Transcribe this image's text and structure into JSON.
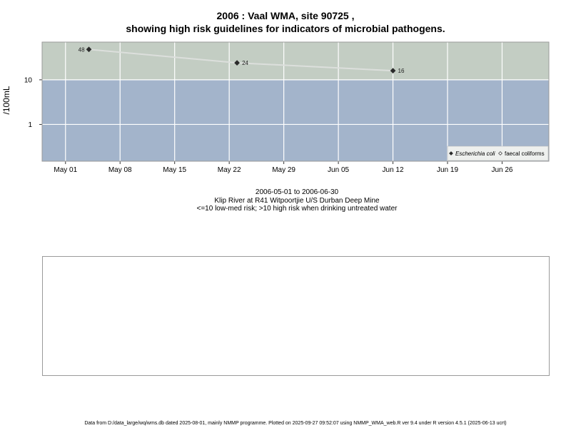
{
  "title_line1": "2006 : Vaal WMA, site 90725 ,",
  "title_line2": "showing high risk guidelines for indicators of microbial pathogens.",
  "captions": {
    "date_range": "2006-05-01 to 2006-06-30",
    "site": "Klip River at R41 Witpoortjie U/S Durban Deep Mine",
    "risk": "<=10 low-med risk; >10 high risk when drinking untreated water"
  },
  "footer": "Data from D:/data_large/wq/wms.db dated 2025-08-01, mainly NMMP programme. Plotted on 2025-09-27 09:52:07 using NMMP_WMA_web.R ver 9.4 under R version 4.5.1 (2025-06-13 ucrt)",
  "colors": {
    "low_risk_band": "#a3b4cb",
    "high_risk_band": "#c3cdc3",
    "grid": "#ffffff",
    "line": "#dcdfdc",
    "point": "#2b2b2b"
  },
  "chart_data": {
    "type": "line",
    "ylabel": "/100mL",
    "y_scale": "log",
    "ylim": [
      0.15,
      70
    ],
    "xlim": [
      "2006-04-28",
      "2006-07-02"
    ],
    "x_tick_labels": [
      "May 01",
      "May 08",
      "May 15",
      "May 22",
      "May 29",
      "Jun 05",
      "Jun 12",
      "Jun 19",
      "Jun 26"
    ],
    "x_ticks": [
      "2006-05-01",
      "2006-05-08",
      "2006-05-15",
      "2006-05-22",
      "2006-05-29",
      "2006-06-05",
      "2006-06-12",
      "2006-06-19",
      "2006-06-26"
    ],
    "y_ticks": [
      1,
      10
    ],
    "y_tick_labels": [
      "1",
      "10"
    ],
    "risk_threshold": 10,
    "grid": true,
    "legend_position": "bottom-right",
    "series": [
      {
        "name": "Escherichia coli",
        "marker": "filled-diamond",
        "points": [
          {
            "x": "2006-05-04",
            "y": 48,
            "label": "48"
          },
          {
            "x": "2006-05-23",
            "y": 24,
            "label": "24"
          },
          {
            "x": "2006-06-12",
            "y": 16,
            "label": "16"
          }
        ]
      },
      {
        "name": "faecal coliforms",
        "marker": "open-diamond",
        "points": []
      }
    ]
  }
}
